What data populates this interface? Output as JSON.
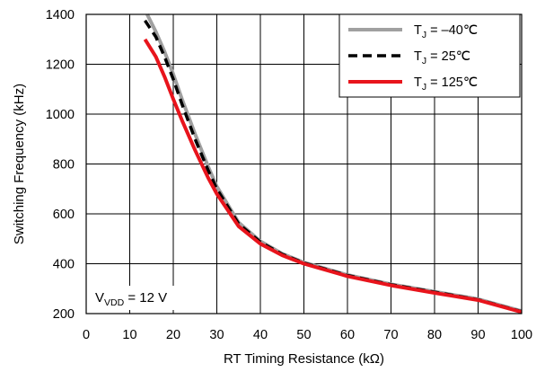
{
  "chart_data": {
    "type": "line",
    "xlabel": "RT Timing Resistance (kΩ)",
    "ylabel": "Switching Frequency (kHz)",
    "xlim": [
      0,
      100
    ],
    "ylim": [
      200,
      1400
    ],
    "xticks": [
      0,
      10,
      20,
      30,
      40,
      50,
      60,
      70,
      80,
      90,
      100
    ],
    "yticks": [
      200,
      400,
      600,
      800,
      1000,
      1200,
      1400
    ],
    "grid": true,
    "legend_position": "top-right",
    "annotation": {
      "base": "V",
      "sub": "VDD",
      "rest": " = 12 V"
    },
    "series": [
      {
        "name": "T_J = –40℃",
        "legend_base": "T",
        "legend_sub": "J",
        "legend_rest": " = –40℃",
        "color": "#a0a0a0",
        "style": "solid",
        "x": [
          14,
          16,
          18,
          20,
          22,
          25,
          28,
          30,
          35,
          40,
          45,
          50,
          60,
          70,
          80,
          90,
          100
        ],
        "y": [
          1400,
          1330,
          1250,
          1160,
          1060,
          920,
          790,
          710,
          565,
          490,
          440,
          405,
          355,
          318,
          288,
          258,
          210
        ]
      },
      {
        "name": "T_J = 25℃",
        "legend_base": "T",
        "legend_sub": "J",
        "legend_rest": " = 25℃",
        "color": "#000000",
        "style": "dashed",
        "x": [
          13.5,
          16,
          18,
          20,
          22,
          25,
          28,
          30,
          35,
          40,
          45,
          50,
          60,
          70,
          80,
          90,
          100
        ],
        "y": [
          1375,
          1310,
          1230,
          1140,
          1040,
          900,
          775,
          700,
          560,
          487,
          438,
          403,
          353,
          316,
          286,
          256,
          208
        ]
      },
      {
        "name": "T_J = 125℃",
        "legend_base": "T",
        "legend_sub": "J",
        "legend_rest": " = 125℃",
        "color": "#e8141c",
        "style": "solid",
        "x": [
          13.5,
          16,
          18,
          20,
          22,
          25,
          28,
          30,
          35,
          40,
          45,
          50,
          60,
          70,
          80,
          90,
          100
        ],
        "y": [
          1300,
          1230,
          1150,
          1060,
          975,
          855,
          745,
          680,
          550,
          480,
          434,
          400,
          350,
          313,
          283,
          254,
          206
        ]
      }
    ]
  }
}
